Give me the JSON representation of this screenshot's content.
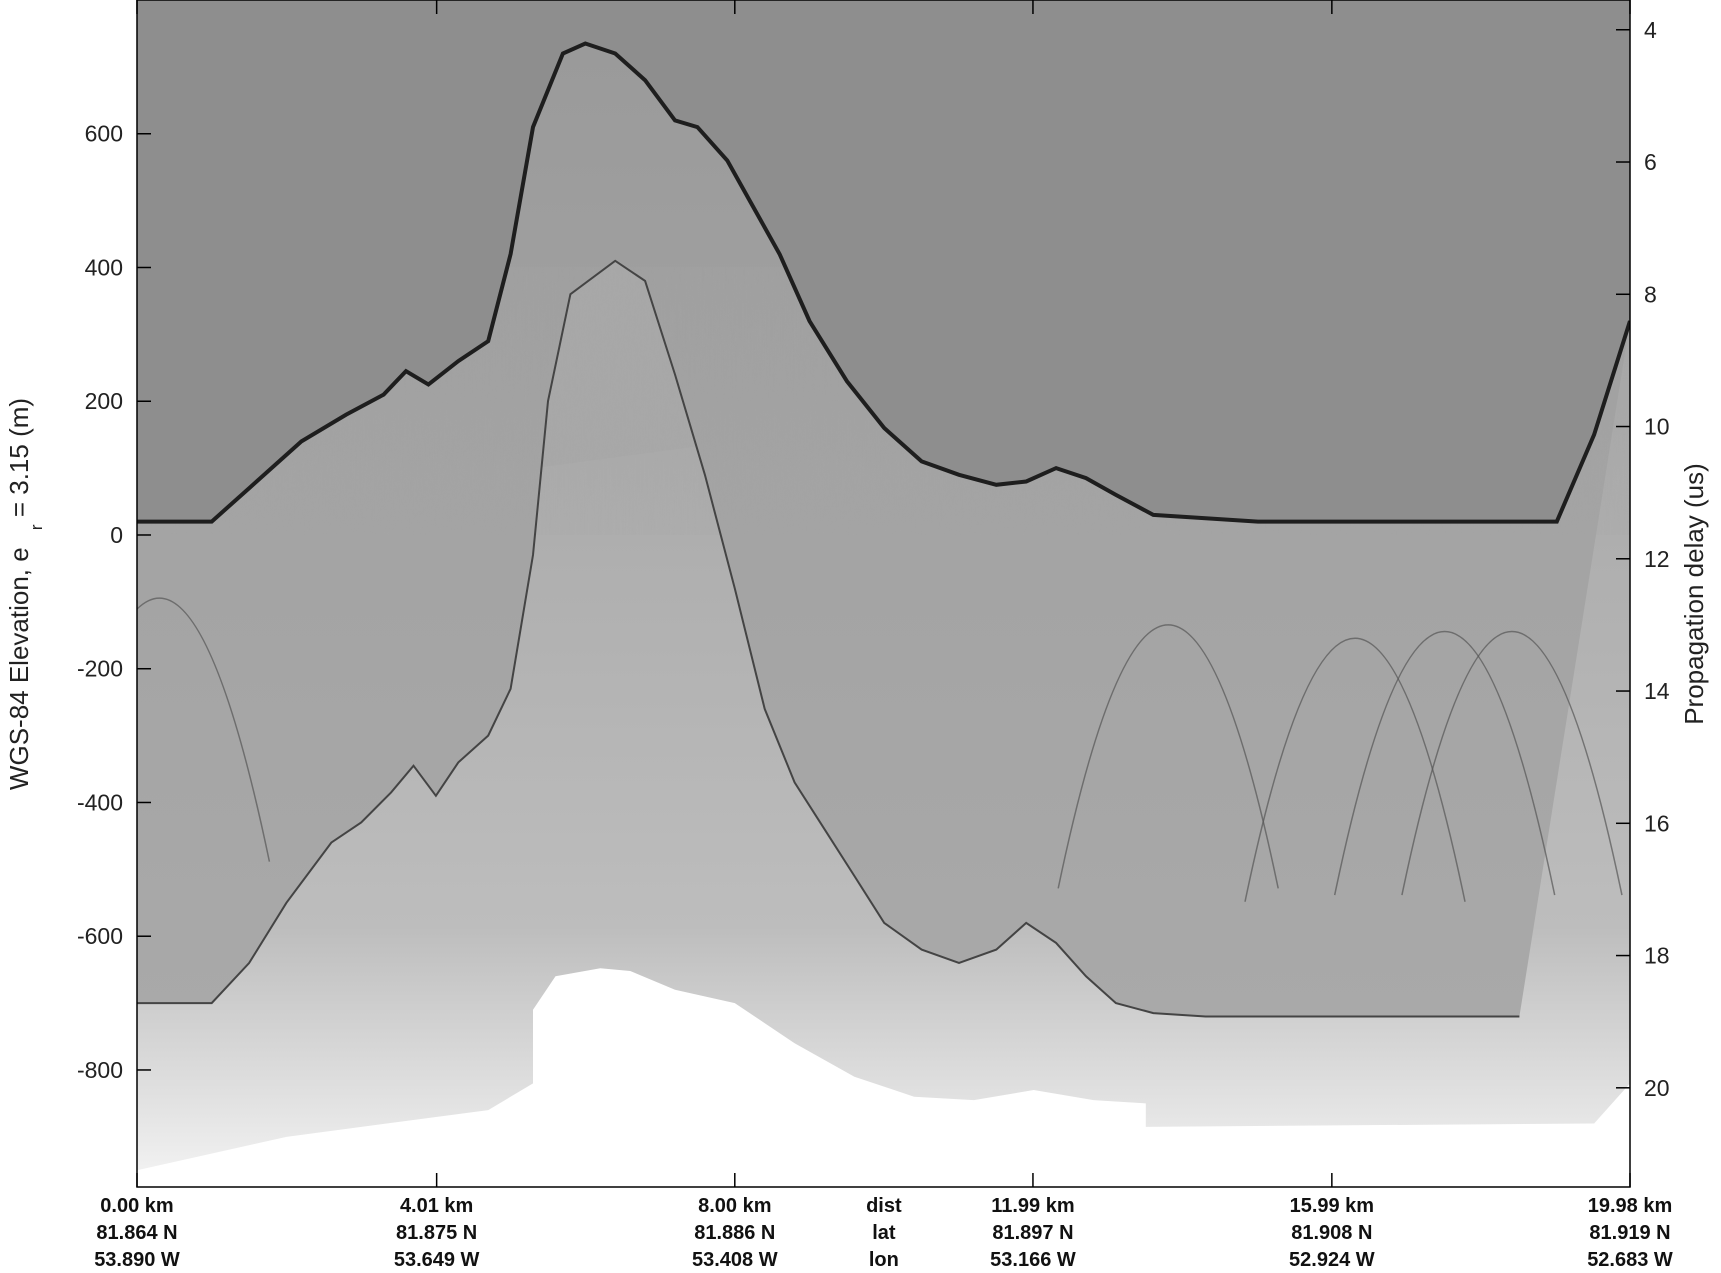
{
  "chart_data": {
    "type": "radargram",
    "y_left": {
      "label_prefix": "WGS-84 Elevation, e",
      "label_sub": "r",
      "label_suffix": " = 3.15 (m)",
      "range": [
        -975,
        800
      ],
      "ticks": [
        600,
        400,
        200,
        0,
        -200,
        -400,
        -600,
        -800
      ]
    },
    "y_right": {
      "label": "Propagation delay (us)",
      "range": [
        3.55,
        21.5
      ],
      "ticks": [
        4,
        6,
        8,
        10,
        12,
        14,
        16,
        18,
        20
      ]
    },
    "x": {
      "range_km": [
        0,
        19.98
      ],
      "tick_km": [
        0,
        4.01,
        8.0,
        11.99,
        15.99,
        19.98
      ],
      "row_names": [
        "dist",
        "lat",
        "lon"
      ],
      "dist": [
        "0.00 km",
        "4.01 km",
        "8.00 km",
        "11.99 km",
        "15.99 km",
        "19.98 km"
      ],
      "lat": [
        "81.864 N",
        "81.875 N",
        "81.886 N",
        "81.897 N",
        "81.908 N",
        "81.919 N"
      ],
      "lon": [
        "53.890 W",
        "53.649 W",
        "53.408 W",
        "53.166 W",
        "52.924 W",
        "52.683 W"
      ]
    },
    "surface_elevation": {
      "km": [
        0,
        0.6,
        1.0,
        1.5,
        2.2,
        2.8,
        3.3,
        3.6,
        3.9,
        4.3,
        4.7,
        5.0,
        5.3,
        5.7,
        6.0,
        6.4,
        6.8,
        7.2,
        7.5,
        7.9,
        8.2,
        8.6,
        9.0,
        9.5,
        10.0,
        10.5,
        11.0,
        11.5,
        11.9,
        12.3,
        12.7,
        13.1,
        13.6,
        14.3,
        15.0,
        15.8,
        16.6,
        17.3,
        18.0,
        18.5,
        19.0,
        19.5,
        19.98
      ],
      "elev_m": [
        20,
        20,
        20,
        70,
        140,
        180,
        210,
        245,
        225,
        260,
        290,
        420,
        610,
        720,
        735,
        720,
        680,
        620,
        610,
        560,
        500,
        420,
        320,
        230,
        160,
        110,
        90,
        75,
        80,
        100,
        85,
        60,
        30,
        25,
        20,
        20,
        20,
        20,
        20,
        20,
        20,
        150,
        320
      ]
    },
    "bed_elevation": {
      "km": [
        0,
        0.6,
        1.0,
        1.5,
        2.0,
        2.6,
        3.0,
        3.4,
        3.7,
        4.0,
        4.3,
        4.7,
        5.0,
        5.3,
        5.5,
        5.8,
        6.4,
        6.8,
        7.2,
        7.6,
        8.0,
        8.4,
        8.8,
        9.2,
        9.6,
        10.0,
        10.5,
        11.0,
        11.5,
        11.9,
        12.3,
        12.7,
        13.1,
        13.6,
        14.3,
        15.0,
        15.8,
        16.6,
        17.3,
        18.0,
        18.5
      ],
      "elev_m": [
        -700,
        -700,
        -700,
        -640,
        -550,
        -460,
        -430,
        -385,
        -345,
        -390,
        -340,
        -300,
        -230,
        -30,
        200,
        360,
        410,
        380,
        240,
        90,
        -80,
        -260,
        -370,
        -440,
        -510,
        -580,
        -620,
        -640,
        -620,
        -580,
        -610,
        -660,
        -700,
        -715,
        -720,
        -720,
        -720,
        -720,
        -720,
        -720,
        -720
      ]
    },
    "basal_echo_elevation": {
      "km": [
        5.3,
        5.6,
        6.2,
        6.6,
        7.2,
        8.0,
        8.8,
        9.6,
        10.4,
        11.2,
        12.0,
        12.8,
        13.5
      ],
      "elev_m": [
        -710,
        -660,
        -648,
        -652,
        -680,
        -700,
        -760,
        -810,
        -840,
        -845,
        -830,
        -845,
        -850
      ]
    }
  }
}
